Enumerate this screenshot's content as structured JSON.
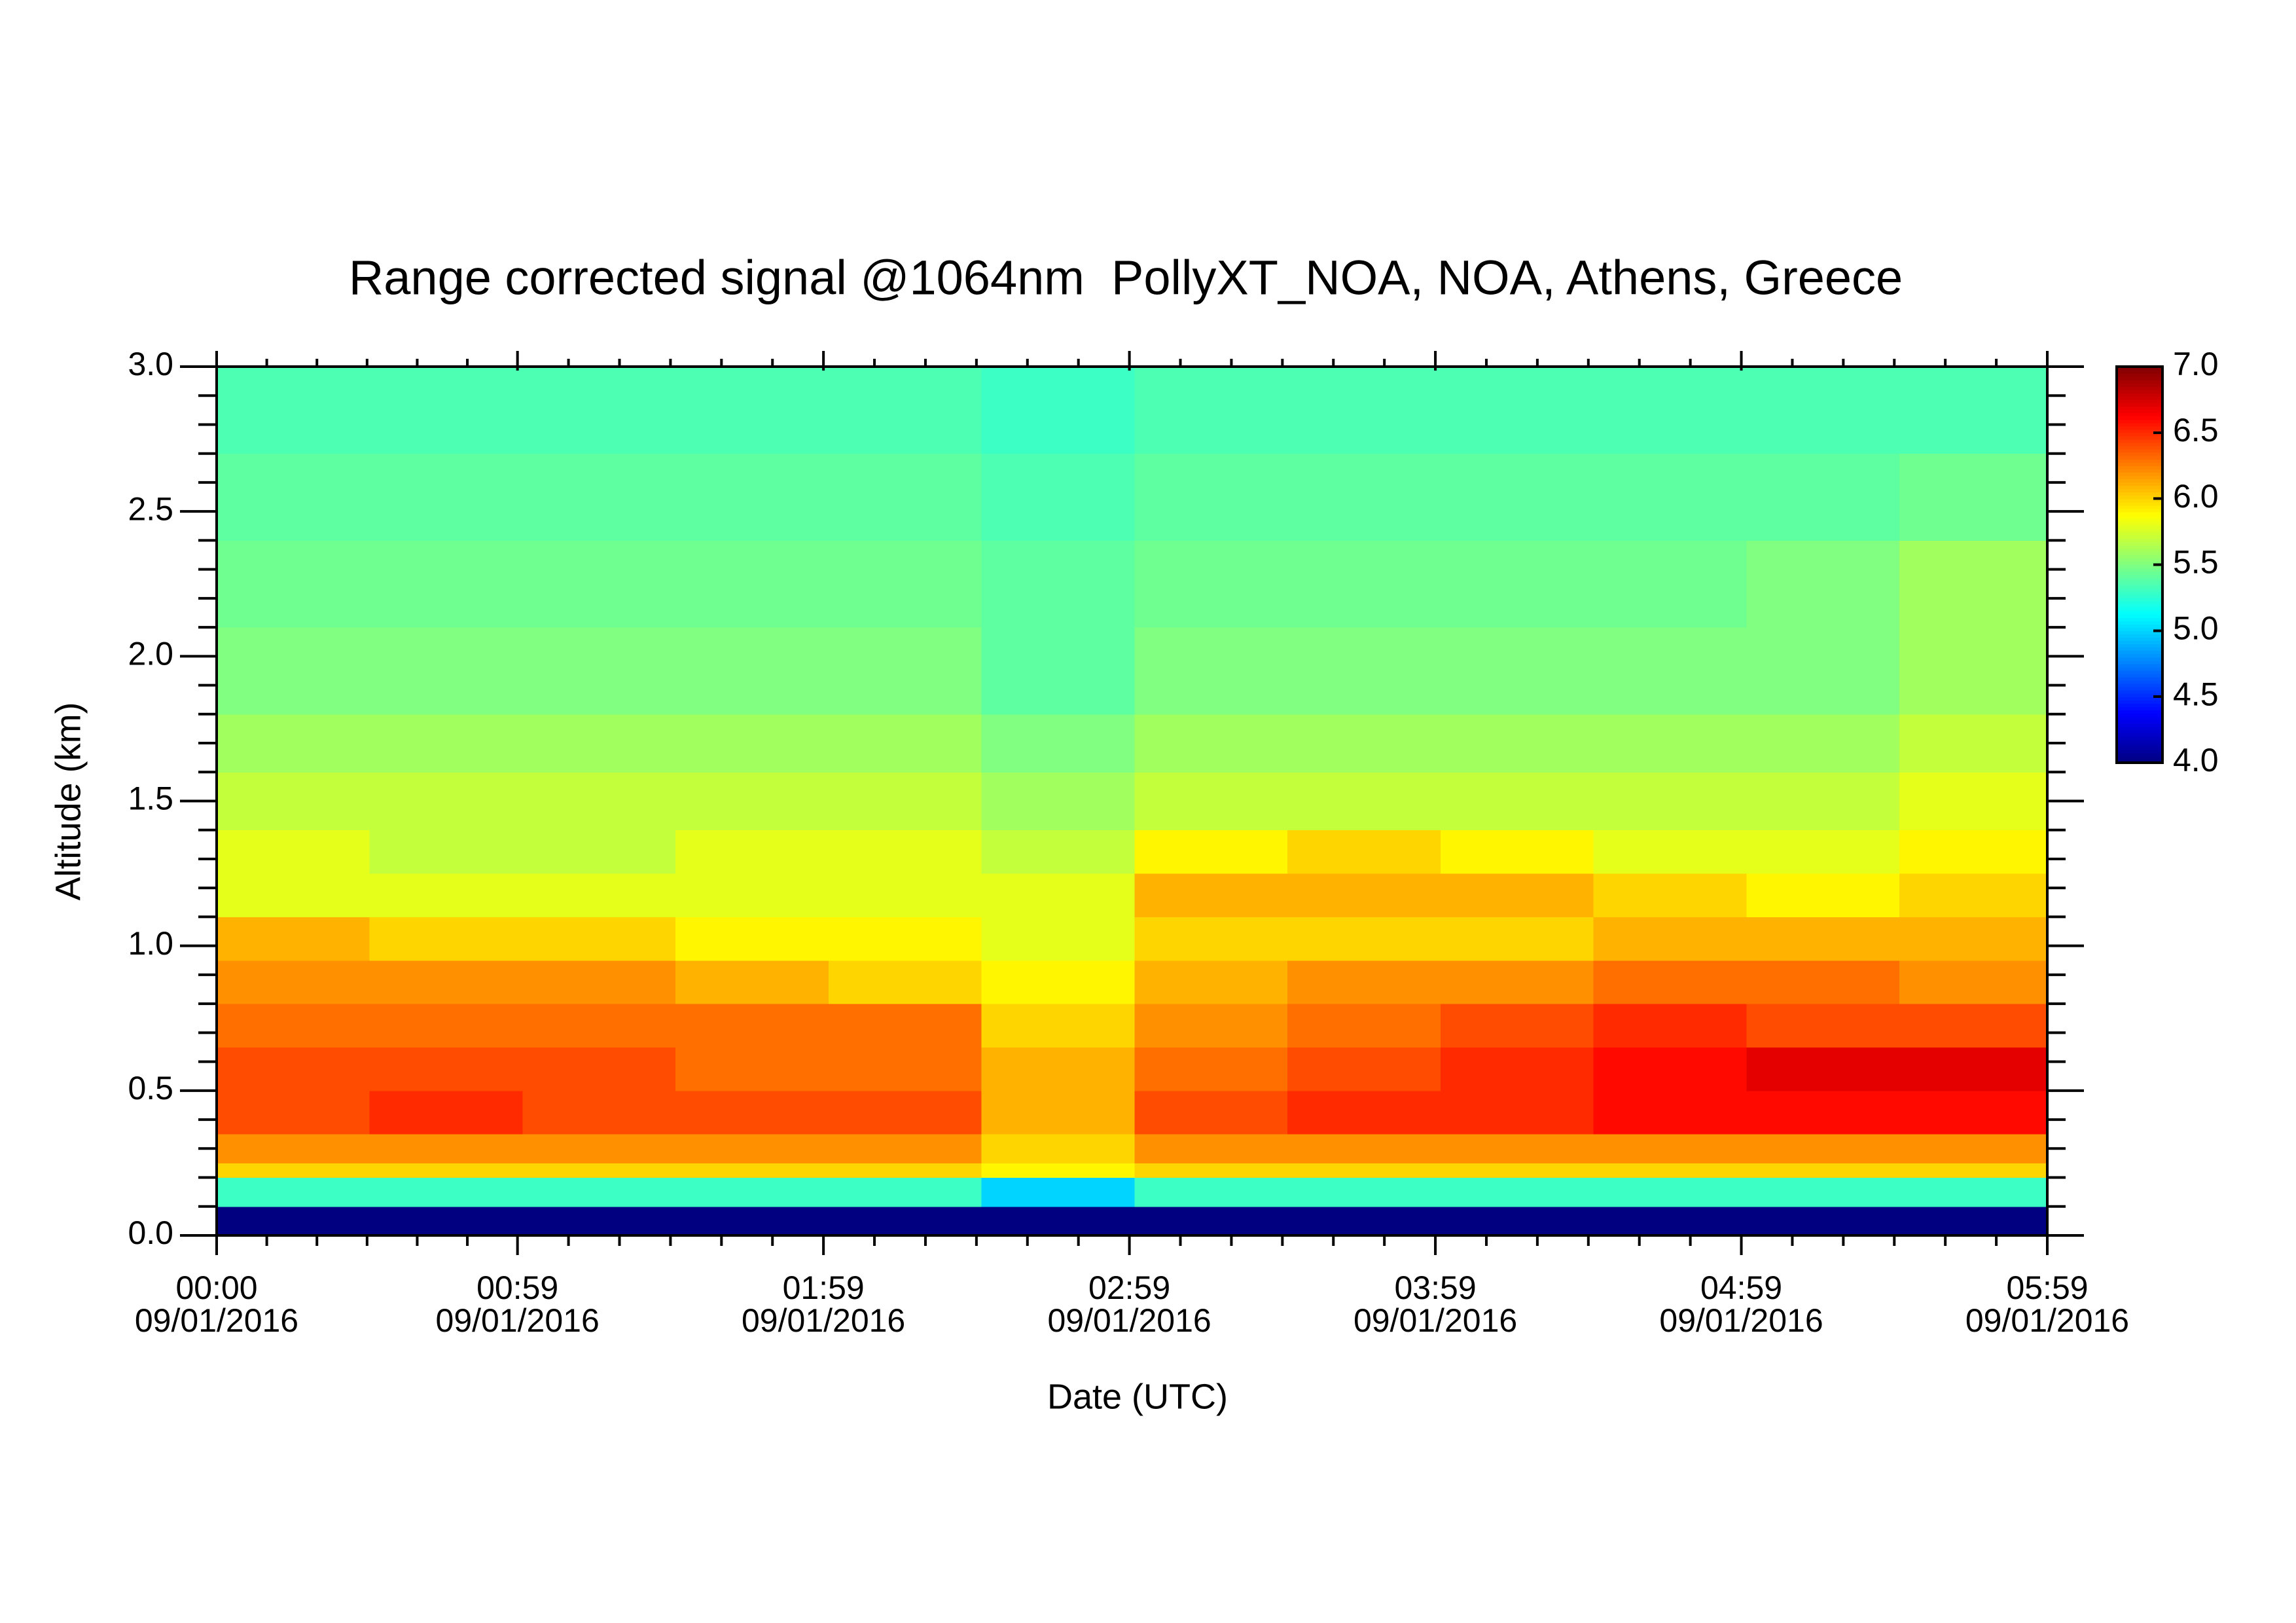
{
  "chart_data": {
    "type": "heatmap",
    "title": "Range corrected signal @1064nm  PollyXT_NOA, NOA, Athens, Greece",
    "xlabel": "Date (UTC)",
    "ylabel": "Altitude (km)",
    "xlim": [
      0,
      359
    ],
    "xticks": [
      {
        "value": 0,
        "label": "00:00"
      },
      {
        "value": 59,
        "label": "00:59"
      },
      {
        "value": 119,
        "label": "01:59"
      },
      {
        "value": 179,
        "label": "02:59"
      },
      {
        "value": 239,
        "label": "03:59"
      },
      {
        "value": 299,
        "label": "04:59"
      },
      {
        "value": 359,
        "label": "05:59"
      }
    ],
    "xtick_dates": [
      "09/01/2016",
      "09/01/2016",
      "09/01/2016",
      "09/01/2016",
      "09/01/2016",
      "09/01/2016",
      "09/01/2016"
    ],
    "ylim": [
      0,
      3
    ],
    "yticks": [
      {
        "value": 0,
        "label": "0.0"
      },
      {
        "value": 0.5,
        "label": "0.5"
      },
      {
        "value": 1,
        "label": "1.0"
      },
      {
        "value": 1.5,
        "label": "1.5"
      },
      {
        "value": 2,
        "label": "2.0"
      },
      {
        "value": 2.5,
        "label": "2.5"
      },
      {
        "value": 3,
        "label": "3.0"
      }
    ],
    "x_edges": [
      0,
      30,
      60,
      90,
      120,
      150,
      180,
      210,
      240,
      270,
      300,
      330,
      359
    ],
    "y_edges": [
      0,
      0.1,
      0.2,
      0.25,
      0.35,
      0.5,
      0.65,
      0.8,
      0.95,
      1.1,
      1.25,
      1.4,
      1.6,
      1.8,
      2.1,
      2.4,
      2.7,
      3.0
    ],
    "values": [
      [
        4.0,
        4.0,
        4.0,
        4.0,
        4.0,
        4.0,
        4.0,
        4.0,
        4.0,
        4.0,
        4.0,
        4.0
      ],
      [
        5.3,
        5.3,
        5.3,
        5.3,
        5.3,
        5.0,
        5.3,
        5.3,
        5.3,
        5.3,
        5.3,
        5.3
      ],
      [
        6.0,
        6.0,
        6.0,
        6.0,
        6.0,
        5.9,
        6.0,
        6.0,
        6.0,
        6.0,
        6.0,
        6.0
      ],
      [
        6.2,
        6.2,
        6.2,
        6.2,
        6.2,
        6.0,
        6.2,
        6.2,
        6.2,
        6.2,
        6.2,
        6.2
      ],
      [
        6.4,
        6.5,
        6.4,
        6.4,
        6.4,
        6.1,
        6.4,
        6.5,
        6.5,
        6.6,
        6.6,
        6.6
      ],
      [
        6.4,
        6.4,
        6.4,
        6.3,
        6.3,
        6.1,
        6.3,
        6.4,
        6.5,
        6.6,
        6.7,
        6.7
      ],
      [
        6.3,
        6.3,
        6.3,
        6.3,
        6.3,
        6.0,
        6.2,
        6.3,
        6.4,
        6.5,
        6.4,
        6.4
      ],
      [
        6.2,
        6.2,
        6.2,
        6.1,
        6.0,
        5.9,
        6.1,
        6.2,
        6.2,
        6.3,
        6.3,
        6.2
      ],
      [
        6.1,
        6.0,
        6.0,
        5.9,
        5.9,
        5.8,
        6.0,
        6.0,
        6.0,
        6.1,
        6.1,
        6.1
      ],
      [
        5.8,
        5.8,
        5.8,
        5.8,
        5.8,
        5.8,
        6.1,
        6.1,
        6.1,
        6.0,
        5.9,
        6.0
      ],
      [
        5.8,
        5.7,
        5.7,
        5.8,
        5.8,
        5.7,
        5.9,
        6.0,
        5.9,
        5.8,
        5.8,
        5.9
      ],
      [
        5.7,
        5.7,
        5.7,
        5.7,
        5.7,
        5.6,
        5.7,
        5.7,
        5.7,
        5.7,
        5.7,
        5.8
      ],
      [
        5.6,
        5.6,
        5.6,
        5.6,
        5.6,
        5.5,
        5.6,
        5.6,
        5.6,
        5.6,
        5.6,
        5.7
      ],
      [
        5.5,
        5.5,
        5.5,
        5.5,
        5.5,
        5.4,
        5.5,
        5.5,
        5.5,
        5.5,
        5.5,
        5.6
      ],
      [
        5.45,
        5.45,
        5.45,
        5.45,
        5.45,
        5.4,
        5.45,
        5.45,
        5.45,
        5.45,
        5.5,
        5.6
      ],
      [
        5.4,
        5.4,
        5.4,
        5.4,
        5.4,
        5.35,
        5.4,
        5.4,
        5.4,
        5.4,
        5.4,
        5.45
      ],
      [
        5.35,
        5.35,
        5.35,
        5.35,
        5.35,
        5.3,
        5.35,
        5.35,
        5.35,
        5.35,
        5.35,
        5.35
      ]
    ],
    "colormap": "jet",
    "zlim": [
      4,
      7
    ],
    "zticks": [
      {
        "value": 4,
        "label": "4.0"
      },
      {
        "value": 4.5,
        "label": "4.5"
      },
      {
        "value": 5,
        "label": "5.0"
      },
      {
        "value": 5.5,
        "label": "5.5"
      },
      {
        "value": 6,
        "label": "6.0"
      },
      {
        "value": 6.5,
        "label": "6.5"
      },
      {
        "value": 7,
        "label": "7.0"
      }
    ]
  }
}
